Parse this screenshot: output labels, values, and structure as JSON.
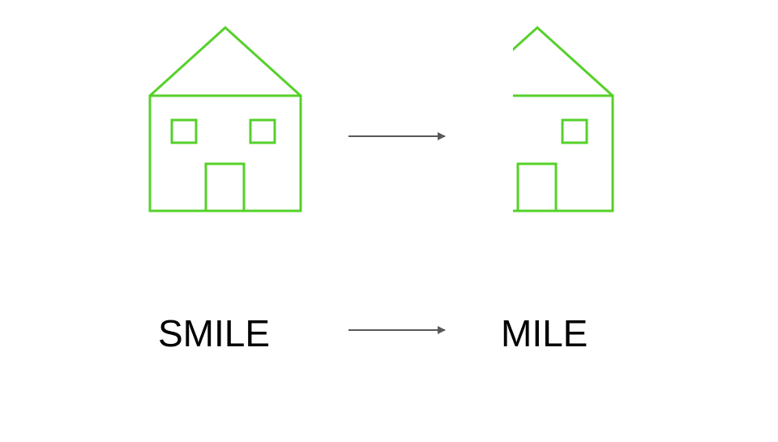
{
  "colors": {
    "house_stroke": "#55d12a",
    "arrow": "#595959",
    "text": "#000000",
    "background": "#ffffff"
  },
  "icons": {
    "full_house": "house-icon",
    "cropped_house": "cropped-house-icon",
    "arrow": "right-arrow-icon"
  },
  "top_row": {
    "before_image": "full-house",
    "after_image": "house-with-left-side-cropped"
  },
  "bottom_row": {
    "before_word": "SMILE",
    "after_word": "MILE"
  }
}
